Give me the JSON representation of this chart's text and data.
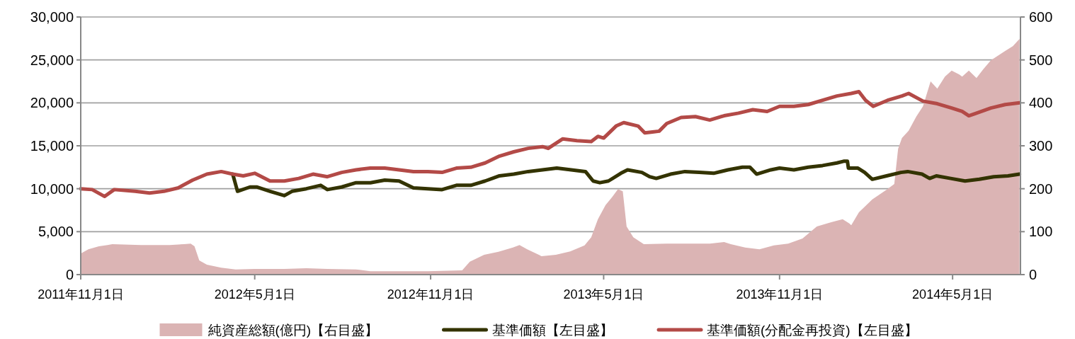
{
  "chart_data": {
    "type": "line",
    "legend": "bottom",
    "grid": "y",
    "line_style": "solid",
    "xlim": [
      "2011-11-01",
      "2014-07-11"
    ],
    "xticks": [
      {
        "value": "2011-11-01",
        "label": "2011年11月1日"
      },
      {
        "value": "2012-05-01",
        "label": "2012年5月1日"
      },
      {
        "value": "2012-11-01",
        "label": "2012年11月1日"
      },
      {
        "value": "2013-05-01",
        "label": "2013年5月1日"
      },
      {
        "value": "2013-11-01",
        "label": "2013年11月1日"
      },
      {
        "value": "2014-05-01",
        "label": "2014年5月1日"
      }
    ],
    "ylim": [
      0,
      30000
    ],
    "yticks": [
      0,
      {
        "value": 5000,
        "label": "5,000"
      },
      {
        "value": 10000,
        "label": "10,000"
      },
      {
        "value": 15000,
        "label": "15,000"
      },
      {
        "value": 20000,
        "label": "20,000"
      },
      {
        "value": 25000,
        "label": "25,000"
      },
      {
        "value": 30000,
        "label": "30,000"
      }
    ],
    "y2lim": [
      0,
      600
    ],
    "y2ticks": [
      0,
      100,
      200,
      300,
      400,
      500,
      600
    ],
    "series": [
      {
        "name": "純資産総額(億円)【右目盛】",
        "type": "area",
        "axis": "y2",
        "color": "#dbb4b4",
        "x": [
          "2011-11-01",
          "2011-11-09",
          "2011-11-20",
          "2011-11-29",
          "2011-12-04",
          "2012-01-03",
          "2012-02-02",
          "2012-02-17",
          "2012-02-24",
          "2012-02-28",
          "2012-03-04",
          "2012-03-12",
          "2012-03-27",
          "2012-04-11",
          "2012-05-01",
          "2012-06-01",
          "2012-06-24",
          "2012-07-16",
          "2012-08-15",
          "2012-08-30",
          "2012-09-29",
          "2012-10-29",
          "2012-12-04",
          "2012-12-12",
          "2012-12-27",
          "2013-01-11",
          "2013-01-26",
          "2013-02-02",
          "2013-02-10",
          "2013-02-25",
          "2013-03-12",
          "2013-03-27",
          "2013-04-11",
          "2013-04-18",
          "2013-04-25",
          "2013-05-03",
          "2013-05-10",
          "2013-05-16",
          "2013-05-21",
          "2013-05-25",
          "2013-06-01",
          "2013-06-12",
          "2013-07-06",
          "2013-08-20",
          "2013-09-04",
          "2013-09-11",
          "2013-09-26",
          "2013-10-11",
          "2013-10-26",
          "2013-11-10",
          "2013-11-25",
          "2013-12-10",
          "2013-12-25",
          "2014-01-06",
          "2014-01-13",
          "2014-01-15",
          "2014-01-23",
          "2014-02-06",
          "2014-02-21",
          "2014-03-01",
          "2014-03-05",
          "2014-03-09",
          "2014-03-16",
          "2014-03-24",
          "2014-03-31",
          "2014-04-08",
          "2014-04-15",
          "2014-04-23",
          "2014-04-30",
          "2014-05-08",
          "2014-05-11",
          "2014-05-18",
          "2014-05-26",
          "2014-06-02",
          "2014-06-10",
          "2014-06-25",
          "2014-07-03",
          "2014-07-10"
        ],
        "values": [
          49,
          59,
          66,
          69,
          71,
          69,
          69,
          71,
          72,
          66,
          33,
          23,
          16,
          12,
          13,
          13,
          15,
          13,
          12,
          8,
          8,
          8,
          10,
          30,
          46,
          53,
          63,
          69,
          59,
          43,
          46,
          54,
          68,
          87,
          129,
          162,
          181,
          199,
          194,
          112,
          87,
          71,
          72,
          72,
          76,
          71,
          63,
          59,
          68,
          72,
          84,
          112,
          122,
          129,
          119,
          115,
          145,
          175,
          198,
          211,
          293,
          318,
          335,
          368,
          392,
          450,
          433,
          461,
          475,
          466,
          461,
          475,
          458,
          478,
          499,
          521,
          532,
          549
        ]
      },
      {
        "name": "基準価額【左目盛】",
        "color": "#333300",
        "x": [
          "2012-04-08",
          "2012-04-13",
          "2012-04-26",
          "2012-05-03",
          "2012-05-17",
          "2012-06-01",
          "2012-06-09",
          "2012-06-24",
          "2012-07-09",
          "2012-07-16",
          "2012-07-31",
          "2012-08-15",
          "2012-08-30",
          "2012-09-14",
          "2012-09-29",
          "2012-10-14",
          "2012-10-29",
          "2012-11-13",
          "2012-11-28",
          "2012-12-13",
          "2012-12-28",
          "2013-01-12",
          "2013-01-27",
          "2013-02-11",
          "2013-02-26",
          "2013-03-13",
          "2013-03-28",
          "2013-04-12",
          "2013-04-20",
          "2013-04-27",
          "2013-05-06",
          "2013-05-19",
          "2013-05-26",
          "2013-06-10",
          "2013-06-18",
          "2013-06-25",
          "2013-07-10",
          "2013-07-25",
          "2013-08-09",
          "2013-08-24",
          "2013-09-08",
          "2013-09-23",
          "2013-10-01",
          "2013-10-08",
          "2013-10-23",
          "2013-11-01",
          "2013-11-16",
          "2013-12-01",
          "2013-12-16",
          "2013-12-31",
          "2014-01-07",
          "2014-01-11",
          "2014-01-12",
          "2014-01-22",
          "2014-01-29",
          "2014-02-06",
          "2014-02-21",
          "2014-03-08",
          "2014-03-15",
          "2014-03-30",
          "2014-04-07",
          "2014-04-14",
          "2014-04-29",
          "2014-05-14",
          "2014-05-29",
          "2014-06-13",
          "2014-06-28",
          "2014-07-10"
        ],
        "values": [
          11700,
          9700,
          10200,
          10200,
          9700,
          9200,
          9700,
          10000,
          10400,
          9900,
          10200,
          10700,
          10700,
          11000,
          10900,
          10100,
          10000,
          9900,
          10400,
          10400,
          10900,
          11500,
          11700,
          12000,
          12200,
          12400,
          12200,
          12000,
          10900,
          10700,
          10900,
          11800,
          12200,
          11900,
          11400,
          11200,
          11700,
          12000,
          11900,
          11800,
          12200,
          12500,
          12500,
          11700,
          12200,
          12400,
          12200,
          12500,
          12700,
          13000,
          13200,
          13200,
          12400,
          12400,
          11900,
          11100,
          11500,
          11900,
          12000,
          11700,
          11200,
          11500,
          11200,
          10900,
          11100,
          11400,
          11500,
          11700
        ]
      },
      {
        "name": "基準価額(分配金再投資)【左目盛】",
        "color": "#b34a47",
        "x": [
          "2011-11-01",
          "2011-11-13",
          "2011-11-26",
          "2011-12-06",
          "2011-12-28",
          "2012-01-12",
          "2012-01-27",
          "2012-02-11",
          "2012-02-26",
          "2012-03-12",
          "2012-03-27",
          "2012-04-08",
          "2012-04-19",
          "2012-05-01",
          "2012-05-17",
          "2012-06-01",
          "2012-06-16",
          "2012-07-01",
          "2012-07-16",
          "2012-07-31",
          "2012-08-15",
          "2012-08-30",
          "2012-09-14",
          "2012-09-29",
          "2012-10-14",
          "2012-10-29",
          "2012-11-13",
          "2012-11-28",
          "2012-12-13",
          "2012-12-28",
          "2013-01-12",
          "2013-01-27",
          "2013-02-11",
          "2013-02-26",
          "2013-03-04",
          "2013-03-19",
          "2013-04-03",
          "2013-04-18",
          "2013-04-25",
          "2013-05-01",
          "2013-05-14",
          "2013-05-22",
          "2013-06-06",
          "2013-06-13",
          "2013-06-21",
          "2013-06-28",
          "2013-07-06",
          "2013-07-21",
          "2013-08-05",
          "2013-08-20",
          "2013-09-04",
          "2013-09-19",
          "2013-10-04",
          "2013-10-19",
          "2013-11-01",
          "2013-11-16",
          "2013-12-01",
          "2013-12-16",
          "2013-12-31",
          "2014-01-15",
          "2014-01-23",
          "2014-01-30",
          "2014-02-07",
          "2014-02-22",
          "2014-03-09",
          "2014-03-16",
          "2014-03-31",
          "2014-04-15",
          "2014-04-30",
          "2014-05-11",
          "2014-05-18",
          "2014-05-26",
          "2014-06-10",
          "2014-06-25",
          "2014-07-10"
        ],
        "values": [
          10000,
          9900,
          9100,
          9900,
          9700,
          9500,
          9700,
          10100,
          11000,
          11700,
          12000,
          11700,
          11500,
          11800,
          10900,
          10900,
          11200,
          11700,
          11400,
          11900,
          12200,
          12400,
          12400,
          12200,
          12000,
          12000,
          11900,
          12400,
          12500,
          13000,
          13800,
          14300,
          14700,
          14900,
          14700,
          15800,
          15600,
          15500,
          16100,
          15900,
          17300,
          17700,
          17300,
          16500,
          16600,
          16700,
          17600,
          18300,
          18400,
          18000,
          18500,
          18800,
          19200,
          19000,
          19600,
          19600,
          19800,
          20300,
          20800,
          21100,
          21300,
          20300,
          19600,
          20300,
          20800,
          21100,
          20200,
          19900,
          19400,
          19000,
          18500,
          18800,
          19400,
          19800,
          20000
        ]
      }
    ]
  }
}
